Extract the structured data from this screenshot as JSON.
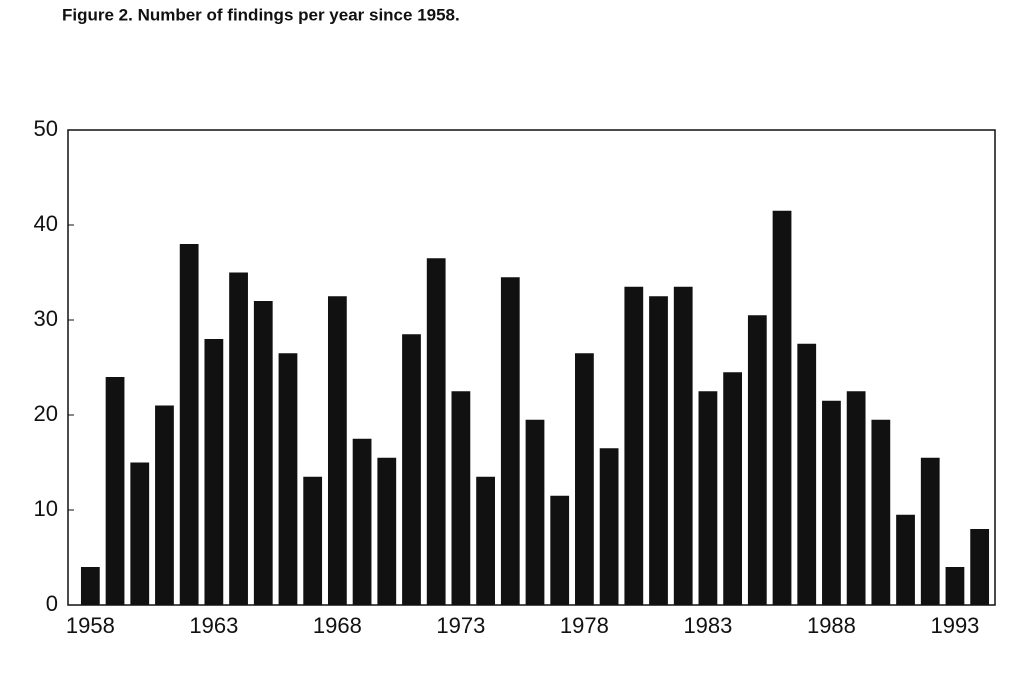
{
  "chart_data": {
    "type": "bar",
    "title": "Figure 2. Number of findings per year since 1958.",
    "categories": [
      "1958",
      null,
      null,
      null,
      null,
      "1963",
      null,
      null,
      null,
      null,
      "1968",
      null,
      null,
      null,
      null,
      "1973",
      null,
      null,
      null,
      null,
      "1978",
      null,
      null,
      null,
      null,
      "1983",
      null,
      null,
      null,
      null,
      "1988",
      null,
      null,
      null,
      null,
      "1993",
      null
    ],
    "values": [
      4,
      24,
      15,
      21,
      38,
      28,
      35,
      32,
      26.5,
      13.5,
      32.5,
      17.5,
      15.5,
      28.5,
      36.5,
      22.5,
      13.5,
      34.5,
      19.5,
      11.5,
      26.5,
      16.5,
      33.5,
      32.5,
      33.5,
      22.5,
      24.5,
      30.5,
      41.5,
      27.5,
      21.5,
      22.5,
      19.5,
      9.5,
      15.5,
      4,
      8
    ],
    "color": "#111111",
    "ylim": [
      0,
      50
    ],
    "yticks": [
      0,
      10,
      20,
      30,
      40,
      50
    ]
  }
}
